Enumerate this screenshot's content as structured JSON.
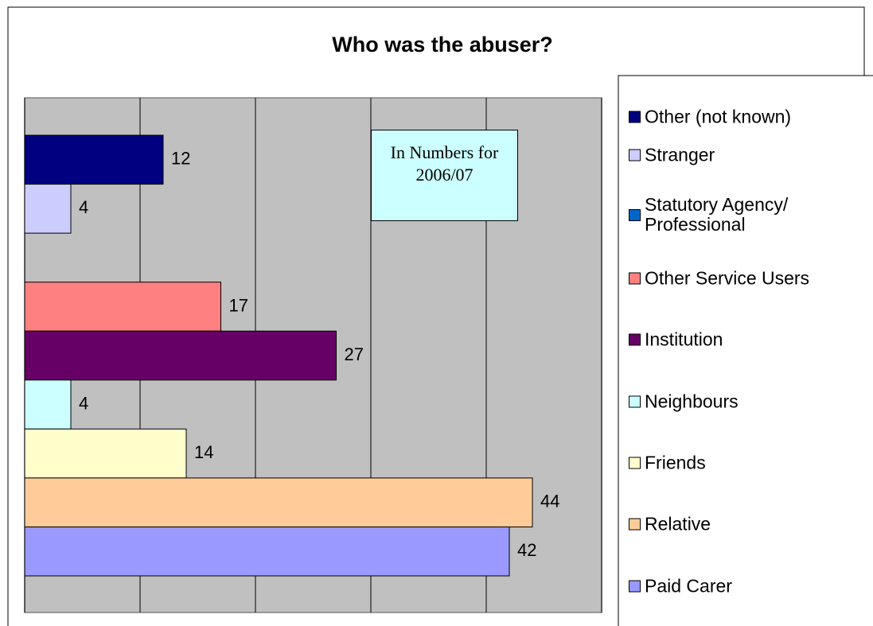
{
  "chart_data": {
    "type": "bar",
    "orientation": "horizontal",
    "title": "Who was the abuser?",
    "annotation": "In Numbers for 2006/07",
    "series": [
      {
        "name": "Other  (not known)",
        "color": "#000080",
        "values": [
          12
        ]
      },
      {
        "name": "Stranger",
        "color": "#ccccff",
        "values": [
          4
        ]
      },
      {
        "name": "Statutory Agency/ Professional",
        "color": "#0066cc",
        "values": [
          0
        ]
      },
      {
        "name": "Other Service Users",
        "color": "#ff8080",
        "values": [
          17
        ]
      },
      {
        "name": "Institution",
        "color": "#660066",
        "values": [
          27
        ]
      },
      {
        "name": "Neighbours",
        "color": "#ccffff",
        "values": [
          4
        ]
      },
      {
        "name": "Friends",
        "color": "#ffffcc",
        "values": [
          14
        ]
      },
      {
        "name": "Relative",
        "color": "#ffcc99",
        "values": [
          44
        ]
      },
      {
        "name": "Paid Carer",
        "color": "#9999ff",
        "values": [
          42
        ]
      }
    ],
    "xlim": [
      0,
      50
    ],
    "xticks": [
      0,
      10,
      20,
      30,
      40,
      50
    ],
    "grid": true,
    "plot_background": "#c0c0c0",
    "legend": "right"
  }
}
